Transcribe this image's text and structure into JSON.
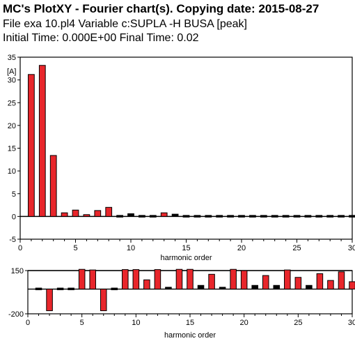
{
  "header": {
    "title": "MC's PlotXY - Fourier chart(s).  Copying date: 2015-08-27",
    "line2": "File exa  10.pl4   Variable c:SUPLA -H  BUSA [peak]",
    "line3": "Initial Time: 0.000E+00    Final Time: 0.02"
  },
  "colors": {
    "bar_fill": "#e8262b",
    "bar_stroke": "#000000",
    "axis": "#000000"
  },
  "chart_data": [
    {
      "type": "bar",
      "title": "",
      "ylabel": "[A]",
      "xlabel": "harmonic order",
      "xlim": [
        0,
        30
      ],
      "ylim": [
        -5,
        35
      ],
      "xticks": [
        0,
        5,
        10,
        15,
        20,
        25,
        30
      ],
      "yticks": [
        -5,
        0,
        5,
        10,
        15,
        20,
        25,
        30,
        35
      ],
      "grid": false,
      "x": [
        1,
        2,
        3,
        4,
        5,
        6,
        7,
        8,
        9,
        10,
        11,
        12,
        13,
        14,
        15,
        16,
        17,
        18,
        19,
        20,
        21,
        22,
        23,
        24,
        25,
        26,
        27,
        28,
        29,
        30
      ],
      "values": [
        31.2,
        33.2,
        13.4,
        0.8,
        1.4,
        0.4,
        1.3,
        2.0,
        0.2,
        0.6,
        0.05,
        0.3,
        0.8,
        0.5,
        0.3,
        0.3,
        0.05,
        0.3,
        0.3,
        0.05,
        0.3,
        0.05,
        0.05,
        0.3,
        0.05,
        0.05,
        0.05,
        0.05,
        0.05,
        0.05
      ],
      "colored": [
        true,
        true,
        true,
        true,
        true,
        true,
        true,
        true,
        false,
        false,
        false,
        false,
        true,
        false,
        false,
        false,
        false,
        false,
        false,
        false,
        false,
        false,
        false,
        false,
        false,
        false,
        false,
        false,
        false,
        false
      ]
    },
    {
      "type": "bar",
      "title": "",
      "xlabel": "harmonic order",
      "xlim": [
        0,
        30
      ],
      "ylim": [
        -200,
        150
      ],
      "xticks": [
        0,
        5,
        10,
        15,
        20,
        25,
        30
      ],
      "yticks": [
        -200,
        150
      ],
      "grid": false,
      "x": [
        1,
        2,
        3,
        4,
        5,
        6,
        7,
        8,
        9,
        10,
        11,
        12,
        13,
        14,
        15,
        16,
        17,
        18,
        19,
        20,
        21,
        22,
        23,
        24,
        25,
        26,
        27,
        28,
        29,
        30
      ],
      "values": [
        0,
        -175,
        0,
        0,
        160,
        155,
        -175,
        0,
        158,
        158,
        75,
        158,
        15,
        160,
        160,
        30,
        120,
        15,
        160,
        150,
        30,
        110,
        30,
        155,
        95,
        30,
        125,
        70,
        140,
        60
      ],
      "colored": [
        false,
        true,
        false,
        false,
        true,
        true,
        true,
        false,
        true,
        true,
        true,
        true,
        false,
        true,
        true,
        false,
        true,
        false,
        true,
        true,
        false,
        true,
        false,
        true,
        true,
        false,
        true,
        true,
        true,
        true
      ]
    }
  ]
}
